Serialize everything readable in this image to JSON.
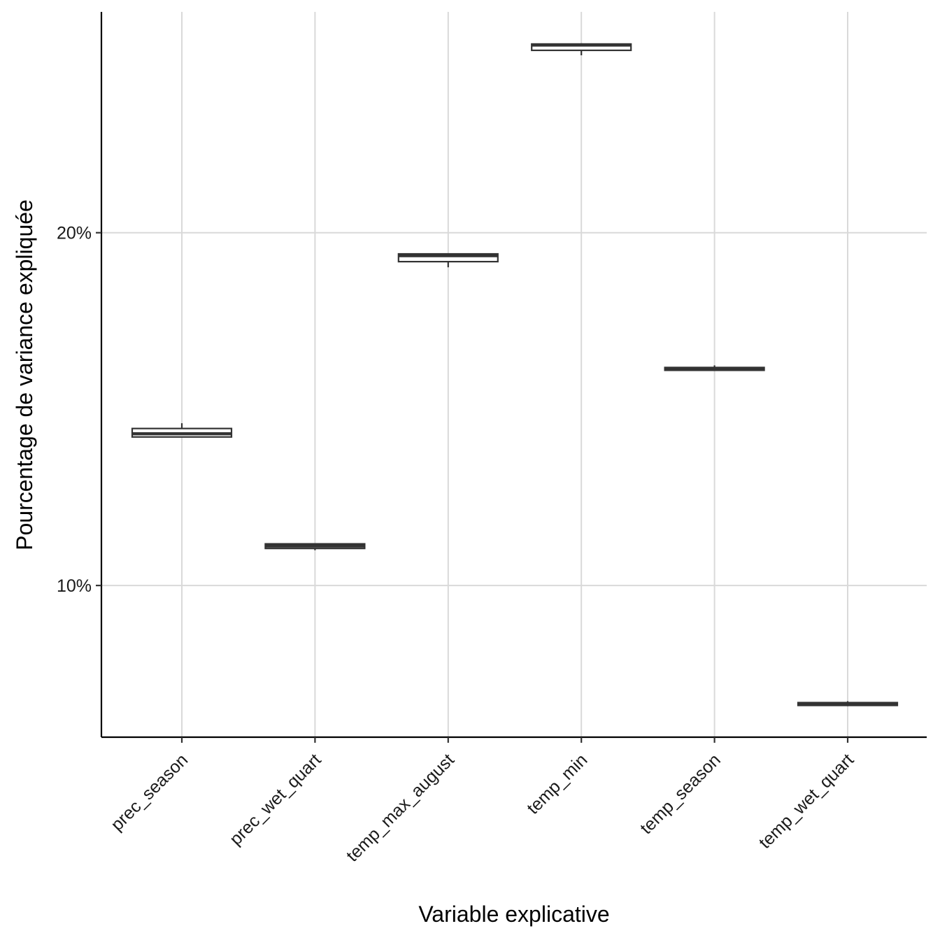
{
  "chart_data": {
    "type": "box",
    "xlabel": "Variable explicative",
    "ylabel": "Pourcentage de variance expliquée",
    "categories": [
      "prec_season",
      "prec_wet_quart",
      "temp_max_august",
      "temp_min",
      "temp_season",
      "temp_wet_quart"
    ],
    "boxes": [
      {
        "category": "prec_season",
        "whisker_low": 14.2,
        "q1": 14.21,
        "median": 14.3,
        "q3": 14.45,
        "whisker_high": 14.6
      },
      {
        "category": "prec_wet_quart",
        "whisker_low": 11.0,
        "q1": 11.05,
        "median": 11.12,
        "q3": 11.18,
        "whisker_high": 11.2
      },
      {
        "category": "temp_max_august",
        "whisker_low": 19.02,
        "q1": 19.18,
        "median": 19.35,
        "q3": 19.4,
        "whisker_high": 19.42
      },
      {
        "category": "temp_min",
        "whisker_low": 25.03,
        "q1": 25.17,
        "median": 25.32,
        "q3": 25.35,
        "whisker_high": 25.37
      },
      {
        "category": "temp_season",
        "whisker_low": 16.08,
        "q1": 16.1,
        "median": 16.13,
        "q3": 16.18,
        "whisker_high": 16.24
      },
      {
        "category": "temp_wet_quart",
        "whisker_low": 6.58,
        "q1": 6.6,
        "median": 6.63,
        "q3": 6.68,
        "whisker_high": 6.72
      }
    ],
    "y_ticks": [
      10,
      20
    ],
    "y_tick_labels": [
      "10%",
      "20%"
    ],
    "ylim": [
      5.7,
      26.26
    ],
    "grid": true,
    "legend": "none"
  }
}
